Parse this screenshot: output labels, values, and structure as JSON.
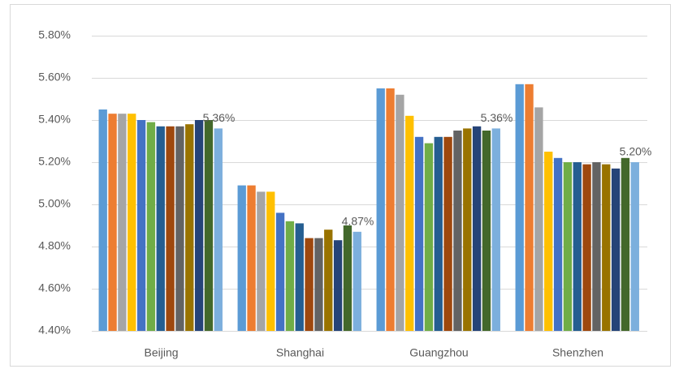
{
  "chart_data": {
    "type": "bar",
    "categories": [
      "Beijing",
      "Shanghai",
      "Guangzhou",
      "Shenzhen"
    ],
    "series": [
      {
        "color": "#5b9bd5",
        "values": [
          5.45,
          5.09,
          5.55,
          5.57
        ]
      },
      {
        "color": "#ed7d31",
        "values": [
          5.43,
          5.09,
          5.55,
          5.57
        ]
      },
      {
        "color": "#a5a5a5",
        "values": [
          5.43,
          5.06,
          5.52,
          5.46
        ]
      },
      {
        "color": "#ffc000",
        "values": [
          5.43,
          5.06,
          5.42,
          5.25
        ]
      },
      {
        "color": "#4472c4",
        "values": [
          5.4,
          4.96,
          5.32,
          5.22
        ]
      },
      {
        "color": "#70ad47",
        "values": [
          5.39,
          4.92,
          5.29,
          5.2
        ]
      },
      {
        "color": "#255e91",
        "values": [
          5.37,
          4.91,
          5.32,
          5.2
        ]
      },
      {
        "color": "#9e480e",
        "values": [
          5.37,
          4.84,
          5.32,
          5.19
        ]
      },
      {
        "color": "#636363",
        "values": [
          5.37,
          4.84,
          5.35,
          5.2
        ]
      },
      {
        "color": "#997300",
        "values": [
          5.38,
          4.88,
          5.36,
          5.19
        ]
      },
      {
        "color": "#264478",
        "values": [
          5.4,
          4.83,
          5.37,
          5.17
        ]
      },
      {
        "color": "#43682b",
        "values": [
          5.4,
          4.9,
          5.35,
          5.22
        ]
      },
      {
        "color": "#7cafdd",
        "values": [
          5.36,
          4.87,
          5.36,
          5.2
        ],
        "value_labels": [
          "5.36%",
          "4.87%",
          "5.36%",
          "5.20%"
        ]
      }
    ],
    "ylim": [
      4.4,
      5.8
    ],
    "yticks": [
      {
        "value": 4.4,
        "label": "4.40%"
      },
      {
        "value": 4.6,
        "label": "4.60%"
      },
      {
        "value": 4.8,
        "label": "4.80%"
      },
      {
        "value": 5.0,
        "label": "5.00%"
      },
      {
        "value": 5.2,
        "label": "5.20%"
      },
      {
        "value": 5.4,
        "label": "5.40%"
      },
      {
        "value": 5.6,
        "label": "5.60%"
      },
      {
        "value": 5.8,
        "label": "5.80%"
      }
    ],
    "grid": true
  }
}
